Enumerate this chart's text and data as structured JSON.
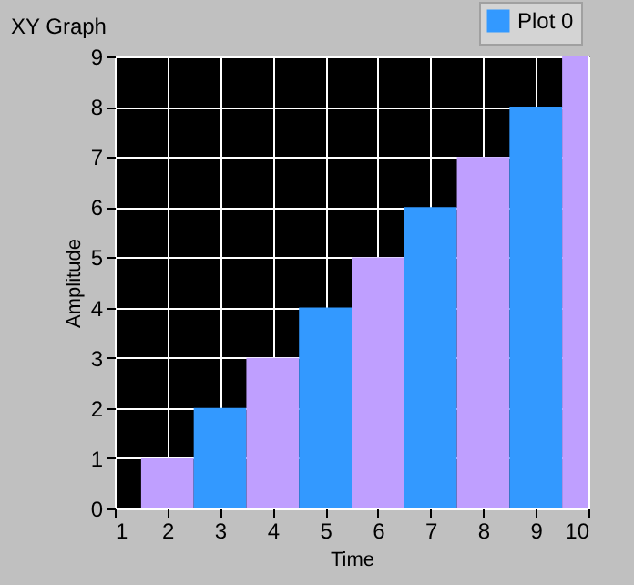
{
  "chart_data": {
    "type": "bar",
    "title": "XY Graph",
    "xlabel": "Time",
    "ylabel": "Amplitude",
    "x": [
      2,
      3,
      4,
      5,
      6,
      7,
      8,
      9,
      10
    ],
    "series": [
      {
        "name": "Plot 0",
        "color": "#3399ff",
        "colors": [
          "#bf9fff",
          "#3399ff",
          "#bf9fff",
          "#3399ff",
          "#bf9fff",
          "#3399ff",
          "#bf9fff",
          "#3399ff",
          "#bf9fff"
        ],
        "values": [
          1,
          2,
          3,
          4,
          5,
          6,
          7,
          8,
          9
        ]
      }
    ],
    "xlim": [
      1,
      10
    ],
    "xticks": [
      1,
      2,
      3,
      4,
      5,
      6,
      7,
      8,
      9,
      10
    ],
    "ylim": [
      0,
      9
    ],
    "yticks": [
      0,
      1,
      2,
      3,
      4,
      5,
      6,
      7,
      8,
      9
    ],
    "grid": true,
    "legend": "top right"
  }
}
